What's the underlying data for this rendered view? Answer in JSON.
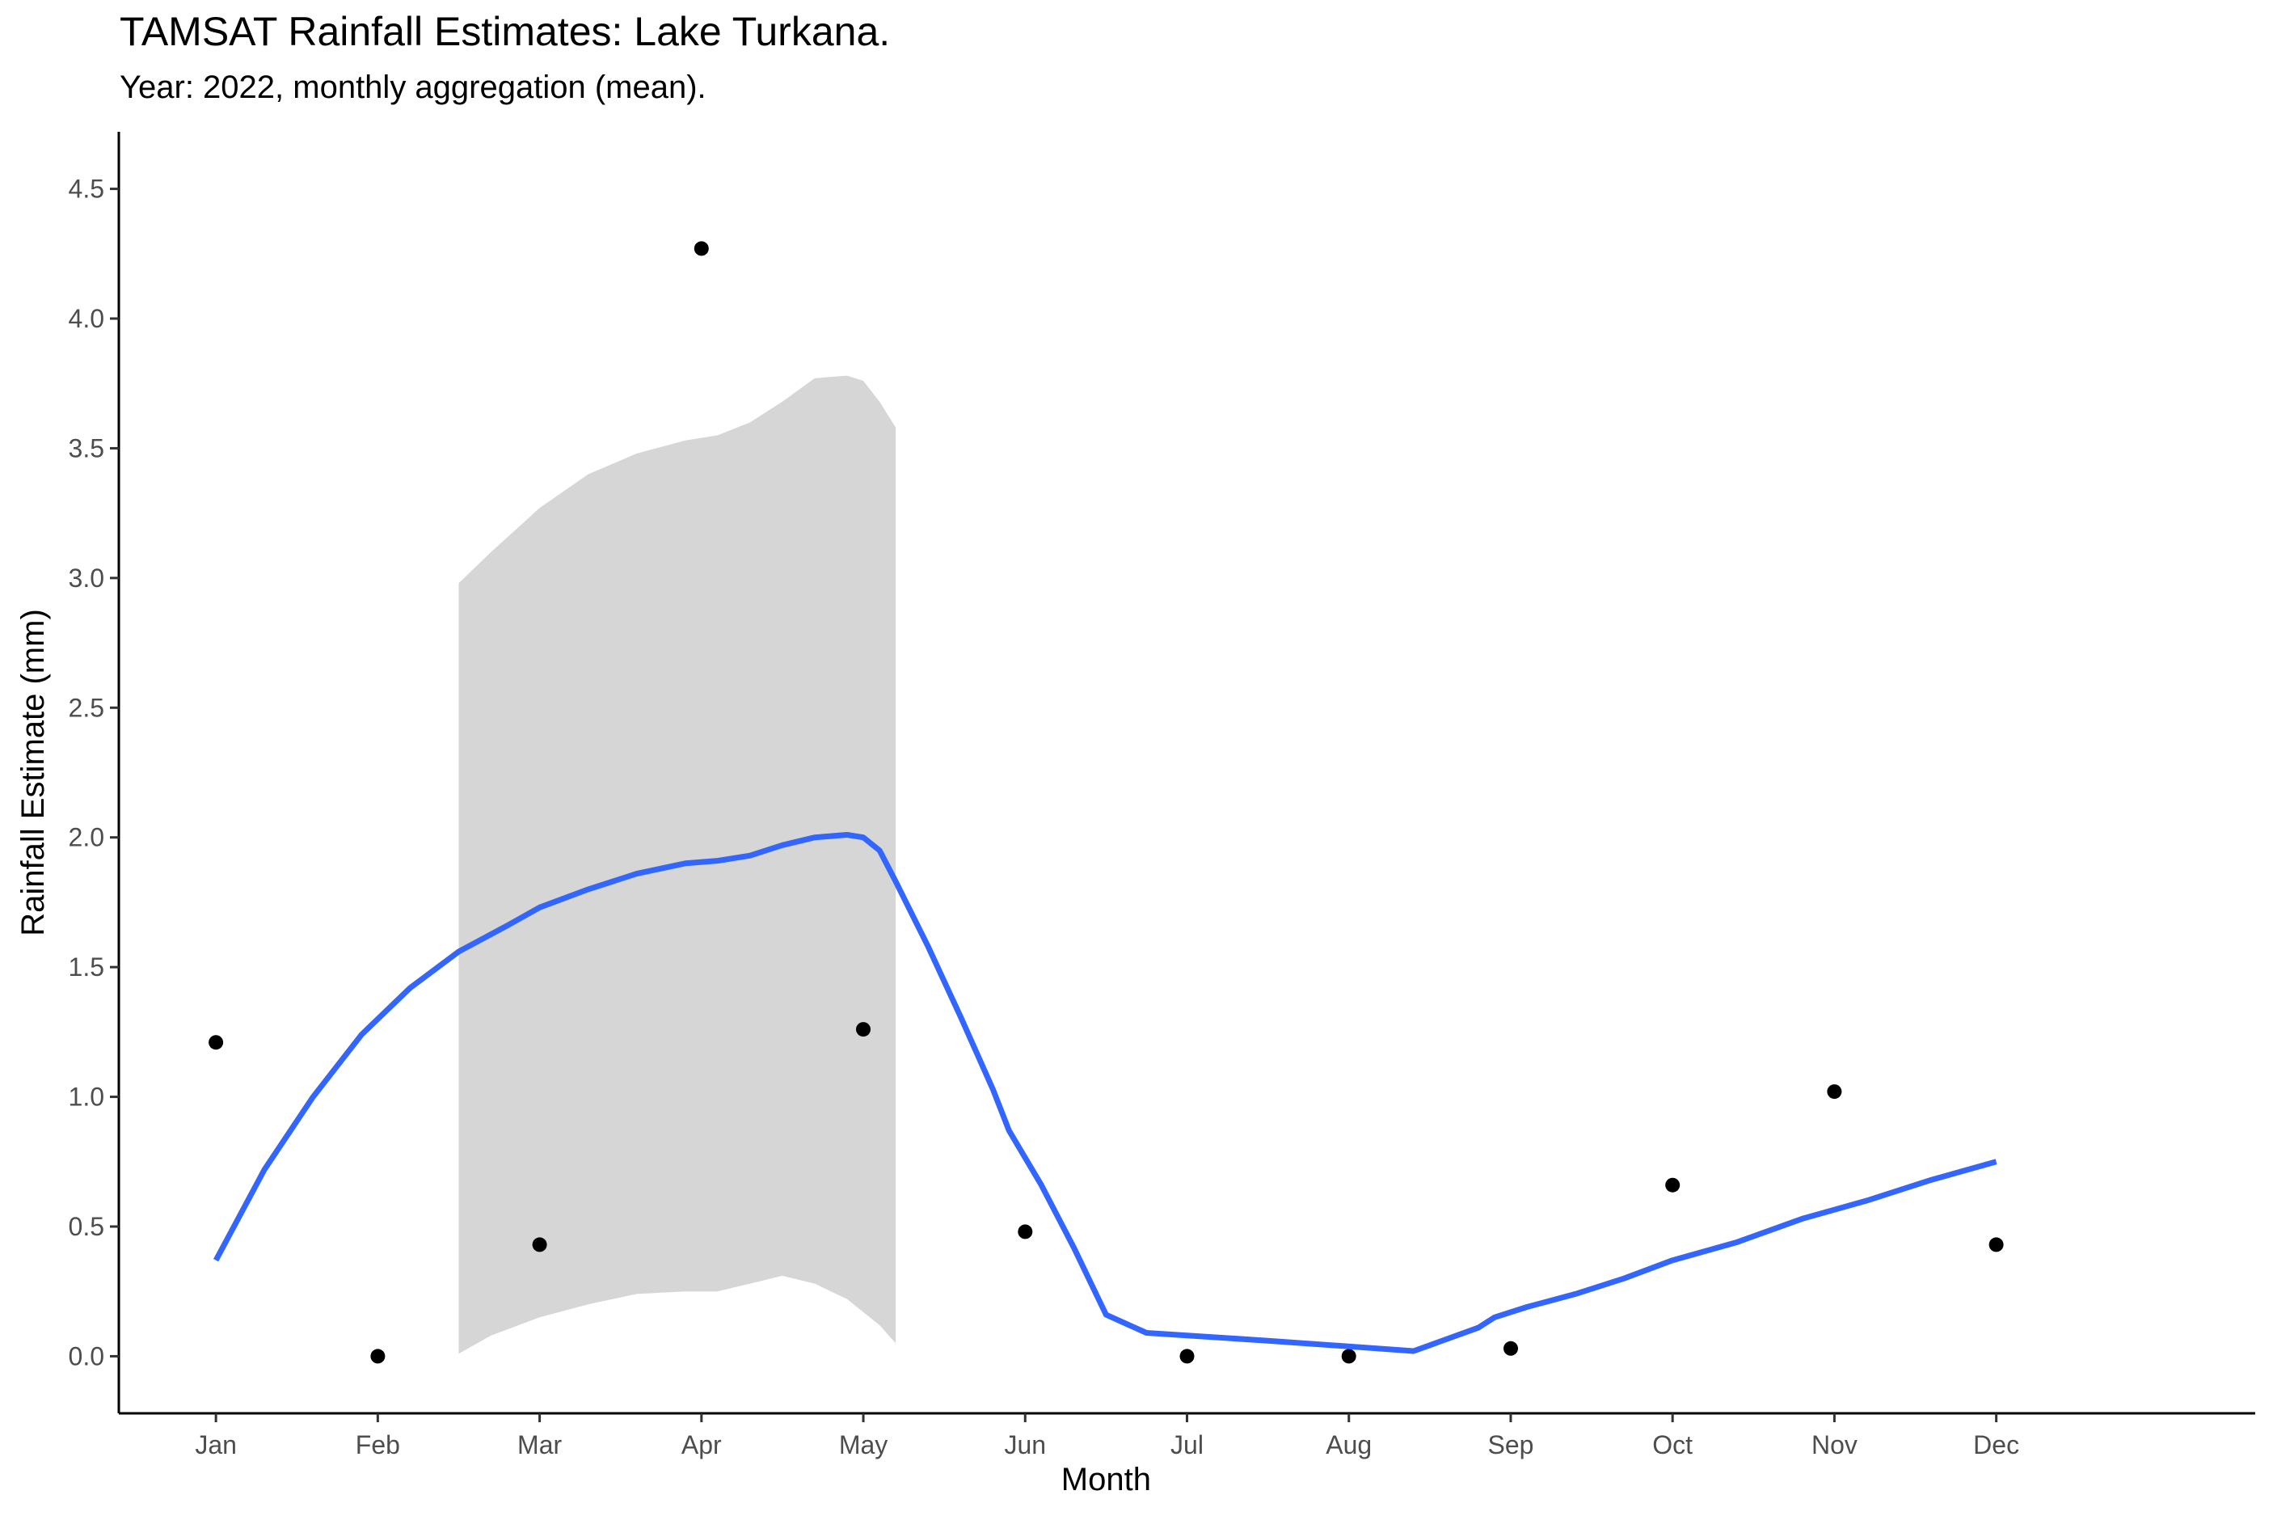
{
  "chart_data": {
    "type": "scatter",
    "title": "TAMSAT Rainfall Estimates: Lake Turkana.",
    "subtitle": "Year: 2022, monthly aggregation (mean).",
    "xlabel": "Month",
    "ylabel": "Rainfall Estimate (mm)",
    "categories": [
      "Jan",
      "Feb",
      "Mar",
      "Apr",
      "May",
      "Jun",
      "Jul",
      "Aug",
      "Sep",
      "Oct",
      "Nov",
      "Dec"
    ],
    "x_range": [
      0.4,
      13.6
    ],
    "ylim": [
      -0.22,
      4.72
    ],
    "y_ticks": [
      0.0,
      0.5,
      1.0,
      1.5,
      2.0,
      2.5,
      3.0,
      3.5,
      4.0,
      4.5
    ],
    "grid": false,
    "legend": "none",
    "series": [
      {
        "kind": "points",
        "x": [
          1,
          2,
          3,
          4,
          5,
          6,
          7,
          8,
          9,
          10,
          11,
          12
        ],
        "values": [
          1.21,
          0.0,
          0.43,
          4.27,
          1.26,
          0.48,
          0.0,
          0.0,
          0.03,
          0.66,
          1.02,
          0.43
        ]
      },
      {
        "kind": "smooth-line",
        "x": [
          1.0,
          1.3,
          1.6,
          1.9,
          2.2,
          2.5,
          2.8,
          3.0,
          3.3,
          3.6,
          3.9,
          4.1,
          4.3,
          4.5,
          4.7,
          4.9,
          5.0,
          5.1,
          5.2,
          5.4,
          5.6,
          5.8,
          5.9,
          6.1,
          6.3,
          6.5,
          6.75,
          7.5,
          8.4,
          8.8,
          8.9,
          9.1,
          9.4,
          9.7,
          10.0,
          10.4,
          10.8,
          11.2,
          11.6,
          12.0
        ],
        "values": [
          0.37,
          0.72,
          1.0,
          1.24,
          1.42,
          1.56,
          1.66,
          1.73,
          1.8,
          1.86,
          1.9,
          1.91,
          1.93,
          1.97,
          2.0,
          2.01,
          2.0,
          1.95,
          1.83,
          1.58,
          1.31,
          1.03,
          0.87,
          0.66,
          0.42,
          0.16,
          0.09,
          0.06,
          0.02,
          0.11,
          0.15,
          0.19,
          0.24,
          0.3,
          0.37,
          0.44,
          0.53,
          0.6,
          0.68,
          0.75
        ],
        "color": "#3366ff"
      },
      {
        "kind": "confidence-band",
        "x": [
          2.5,
          2.7,
          3.0,
          3.3,
          3.6,
          3.9,
          4.1,
          4.3,
          4.5,
          4.7,
          4.9,
          5.0,
          5.1,
          5.2
        ],
        "upper": [
          2.98,
          3.1,
          3.27,
          3.4,
          3.48,
          3.53,
          3.55,
          3.6,
          3.68,
          3.77,
          3.78,
          3.76,
          3.68,
          3.58
        ],
        "lower": [
          0.01,
          0.08,
          0.15,
          0.2,
          0.24,
          0.25,
          0.25,
          0.28,
          0.31,
          0.28,
          0.22,
          0.17,
          0.12,
          0.05
        ],
        "color": "#d6d6d6"
      }
    ],
    "colors": {
      "points": "#000000",
      "line": "#3366ff",
      "band": "#d6d6d6",
      "axis": "#000000",
      "tick_label": "#4d4d4d"
    }
  }
}
